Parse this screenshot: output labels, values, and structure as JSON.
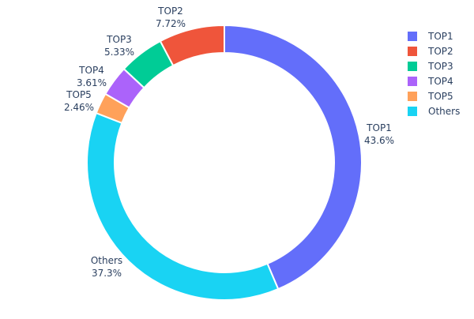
{
  "chart_data": {
    "type": "pie",
    "hole": true,
    "labels": [
      "TOP1",
      "TOP2",
      "TOP3",
      "TOP4",
      "TOP5",
      "Others"
    ],
    "values": [
      43.6,
      7.72,
      5.33,
      3.61,
      2.46,
      37.3
    ],
    "value_labels": [
      "43.6%",
      "7.72%",
      "5.33%",
      "3.61%",
      "2.46%",
      "37.3%"
    ],
    "colors": [
      "#636efa",
      "#EF553B",
      "#00cc96",
      "#ab63fa",
      "#FFA15A",
      "#19d3f3"
    ],
    "clockwise_order": [
      "TOP1",
      "Others",
      "TOP5",
      "TOP4",
      "TOP3",
      "TOP2"
    ],
    "legend": {
      "placement": "top-right",
      "entries": [
        "TOP1",
        "TOP2",
        "TOP3",
        "TOP4",
        "TOP5",
        "Others"
      ]
    }
  }
}
